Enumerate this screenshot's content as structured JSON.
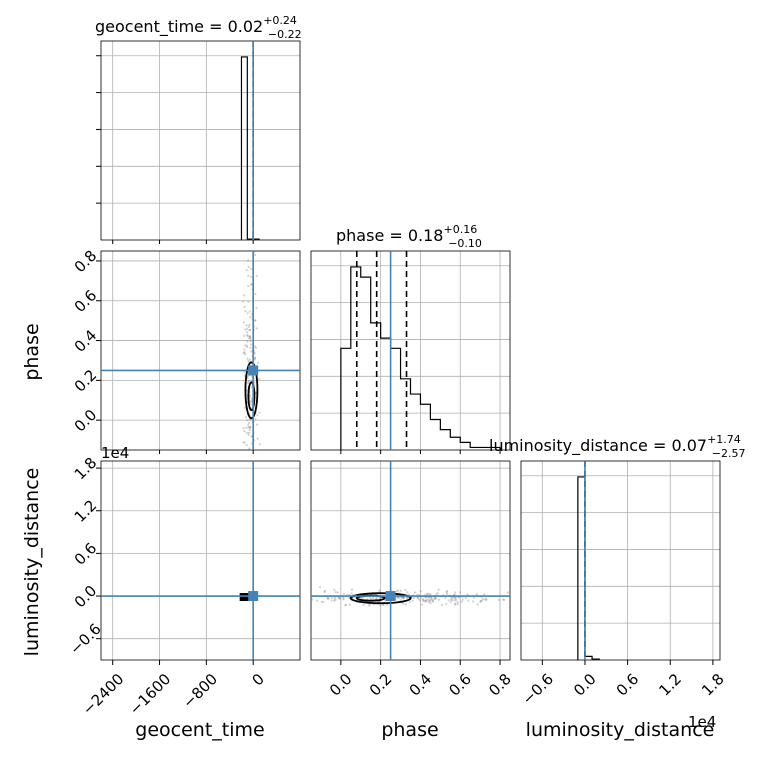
{
  "chart_data": {
    "type": "corner",
    "parameters": [
      "geocent_time",
      "phase",
      "luminosity_distance"
    ],
    "truths": {
      "geocent_time": 0,
      "phase": 0.25,
      "luminosity_distance": 0
    },
    "titles": {
      "geocent_time": {
        "label": "geocent_time = 0.02",
        "plus": "+0.24",
        "minus": "−0.22"
      },
      "phase": {
        "label": "phase = 0.18",
        "plus": "+0.16",
        "minus": "−0.10"
      },
      "luminosity_distance": {
        "label": "luminosity_distance = 0.07",
        "plus": "+1.74",
        "minus": "−2.57"
      }
    },
    "axes": {
      "geocent_time": {
        "range": [
          -2600,
          800
        ],
        "ticks": [
          -2400,
          -1600,
          -800,
          0
        ],
        "tick_labels": [
          "−2400",
          "−1600",
          "−800",
          "0"
        ]
      },
      "phase": {
        "range": [
          -0.15,
          0.85
        ],
        "ticks": [
          0.0,
          0.2,
          0.4,
          0.6,
          0.8
        ],
        "tick_labels": [
          "0.0",
          "0.2",
          "0.4",
          "0.6",
          "0.8"
        ]
      },
      "luminosity_distance": {
        "range": [
          -0.9,
          1.9
        ],
        "ticks": [
          -0.6,
          0.0,
          0.6,
          1.2,
          1.8
        ],
        "tick_labels": [
          "−0.6",
          "0.0",
          "0.6",
          "1.2",
          "1.8"
        ],
        "offset_text": "1e4"
      }
    },
    "histograms": {
      "geocent_time": {
        "edges": [
          -200,
          -100,
          0,
          100
        ],
        "counts": [
          100,
          0.5,
          0.5
        ]
      },
      "phase": {
        "edges": [
          0.0,
          0.05,
          0.1,
          0.15,
          0.2,
          0.25,
          0.3,
          0.35,
          0.4,
          0.45,
          0.5,
          0.55,
          0.6,
          0.65,
          0.7,
          0.75,
          0.8
        ],
        "counts": [
          40,
          72,
          68,
          50,
          44,
          40,
          28,
          22,
          18,
          12,
          8,
          5,
          3,
          1,
          1,
          1
        ],
        "quantiles": [
          0.08,
          0.18,
          0.33
        ]
      },
      "luminosity_distance": {
        "edges": [
          -0.1,
          0.0,
          0.1,
          0.2
        ],
        "counts": [
          100,
          2,
          0.5
        ]
      }
    },
    "grid": true
  }
}
